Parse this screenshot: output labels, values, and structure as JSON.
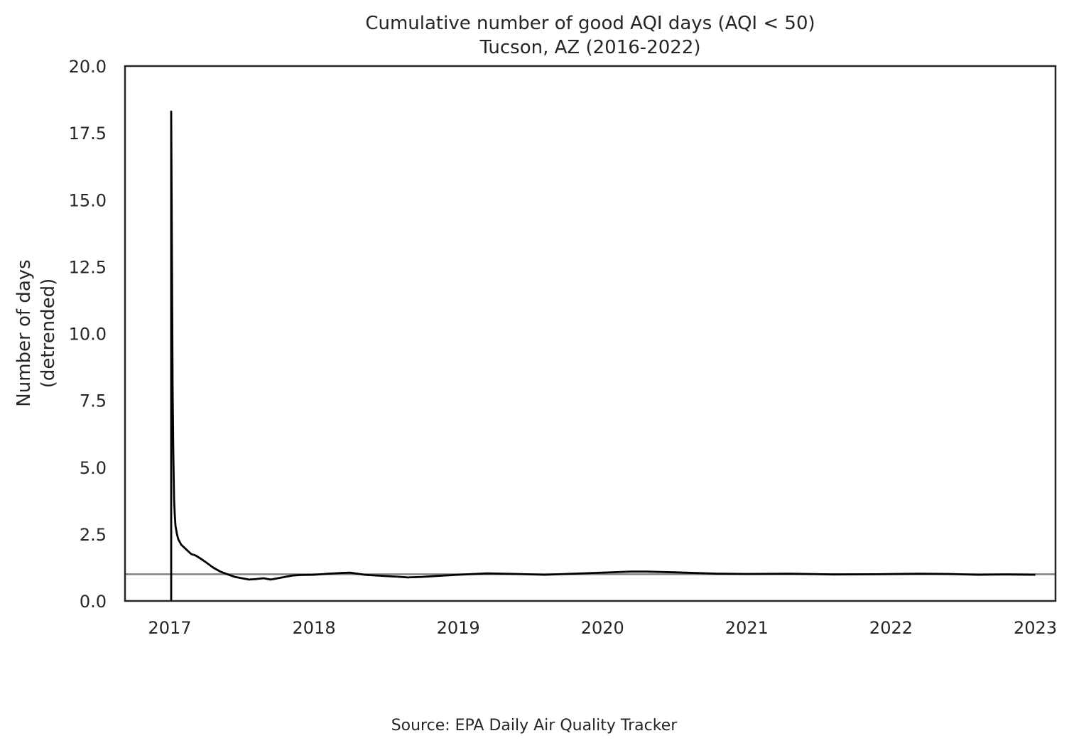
{
  "chart_data": {
    "type": "line",
    "title": "Cumulative number of good AQI days (AQI < 50)",
    "subtitle": "Tucson, AZ (2016-2022)",
    "xlabel": "",
    "ylabel": [
      "Number of days",
      "(detrended)"
    ],
    "source": "Source: EPA Daily Air Quality Tracker",
    "xlim": [
      2016.69,
      2023.14
    ],
    "ylim": [
      0,
      20
    ],
    "x_ticks": [
      2017,
      2018,
      2019,
      2020,
      2021,
      2022,
      2023
    ],
    "x_tick_labels": [
      "2017",
      "2018",
      "2019",
      "2020",
      "2021",
      "2022",
      "2023"
    ],
    "y_ticks": [
      0,
      2.5,
      5,
      7.5,
      10,
      12.5,
      15,
      17.5,
      20
    ],
    "y_tick_labels": [
      "0.0",
      "2.5",
      "5.0",
      "7.5",
      "10.0",
      "12.5",
      "15.0",
      "17.5",
      "20.0"
    ],
    "grid": false,
    "reference_line": {
      "y": 1.0,
      "color": "#808080"
    },
    "series": [
      {
        "color": "#000000",
        "x": [
          2017.01,
          2017.01,
          2017.02,
          2017.025,
          2017.03,
          2017.035,
          2017.04,
          2017.05,
          2017.06,
          2017.08,
          2017.1,
          2017.12,
          2017.15,
          2017.18,
          2017.21,
          2017.25,
          2017.3,
          2017.35,
          2017.4,
          2017.45,
          2017.5,
          2017.55,
          2017.6,
          2017.65,
          2017.7,
          2017.75,
          2017.8,
          2017.85,
          2017.9,
          2018.0,
          2018.1,
          2018.2,
          2018.25,
          2018.35,
          2018.5,
          2018.6,
          2018.65,
          2018.75,
          2018.9,
          2019.0,
          2019.2,
          2019.4,
          2019.6,
          2019.8,
          2020.0,
          2020.2,
          2020.3,
          2020.5,
          2020.8,
          2021.0,
          2021.3,
          2021.6,
          2021.9,
          2022.2,
          2022.4,
          2022.6,
          2022.8,
          2023.0
        ],
        "y": [
          0.0,
          18.3,
          8.0,
          5.5,
          3.8,
          3.2,
          2.8,
          2.5,
          2.3,
          2.1,
          2.0,
          1.9,
          1.75,
          1.7,
          1.6,
          1.45,
          1.25,
          1.1,
          1.0,
          0.9,
          0.85,
          0.8,
          0.82,
          0.85,
          0.8,
          0.85,
          0.9,
          0.95,
          0.97,
          0.98,
          1.02,
          1.05,
          1.06,
          0.98,
          0.93,
          0.9,
          0.88,
          0.9,
          0.95,
          0.98,
          1.03,
          1.01,
          0.98,
          1.02,
          1.06,
          1.1,
          1.1,
          1.07,
          1.02,
          1.01,
          1.02,
          0.99,
          1.0,
          1.02,
          1.01,
          0.98,
          0.99,
          0.98
        ]
      }
    ]
  }
}
